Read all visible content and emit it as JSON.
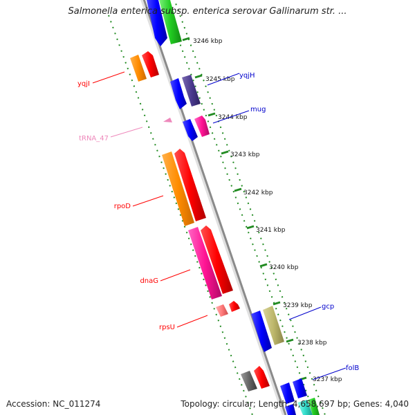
{
  "title": "Salmonella enterica subsp. enterica serovar Gallinarum str. ...",
  "accession": "Accession: NC_011274",
  "summary": "Topology: circular; Length: 4,658,697 bp; Genes: 4,040",
  "tick_unit": "kbp",
  "ticks": [
    3246,
    3245,
    3244,
    3243,
    3242,
    3241,
    3240,
    3239,
    3238,
    3237
  ],
  "genes": [
    {
      "id": "yqjI",
      "label": "yqjI",
      "strand": "left",
      "color": "#ff0000"
    },
    {
      "id": "yqjH",
      "label": "yqjH",
      "strand": "right",
      "color": "#0000cc"
    },
    {
      "id": "mug",
      "label": "mug",
      "strand": "right",
      "color": "#0000cc"
    },
    {
      "id": "tRNA_47",
      "label": "tRNA_47",
      "strand": "left",
      "color": "#ee88bb"
    },
    {
      "id": "rpoD",
      "label": "rpoD",
      "strand": "left",
      "color": "#ff0000"
    },
    {
      "id": "dnaG",
      "label": "dnaG",
      "strand": "left",
      "color": "#ff0000"
    },
    {
      "id": "rpsU",
      "label": "rpsU",
      "strand": "left",
      "color": "#ff0000"
    },
    {
      "id": "gcp",
      "label": "gcp",
      "strand": "right",
      "color": "#0000cc"
    },
    {
      "id": "folB",
      "label": "folB",
      "strand": "right",
      "color": "#0000cc"
    }
  ]
}
